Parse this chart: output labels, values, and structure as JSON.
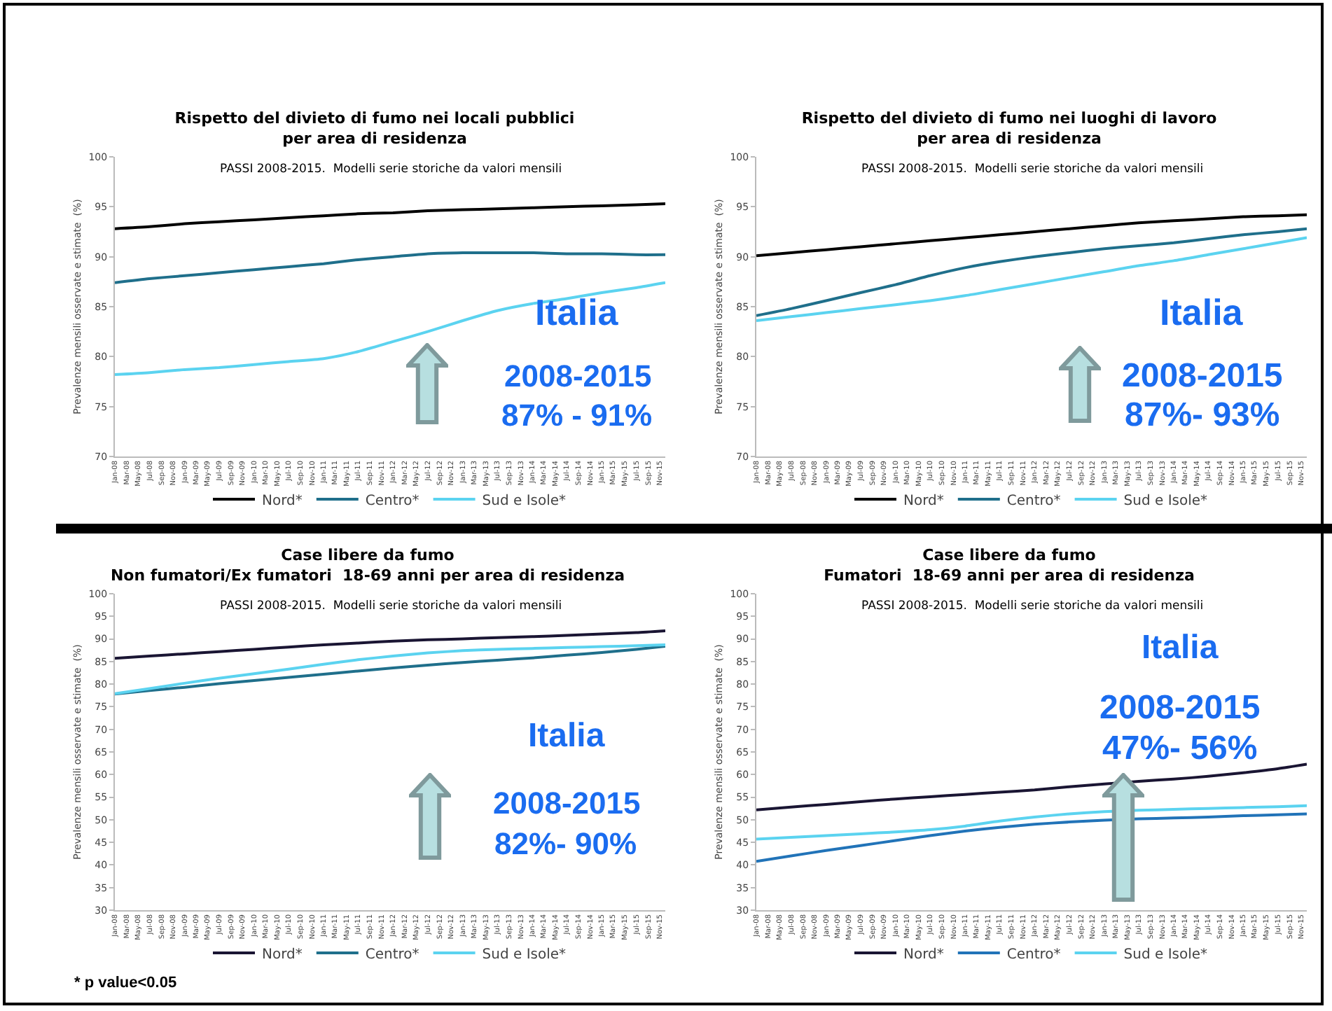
{
  "chart_data": [
    {
      "type": "line",
      "title": "Rispetto del divieto di fumo nei locali pubblici\nper area di residenza",
      "subtitle": "PASSI 2008-2015.  Modelli serie storiche da valori mensili",
      "ylabel": "Prevalenze mensili osservate e stimate  (%)",
      "legend": "bottom",
      "grid": false,
      "marker": "none",
      "line_style": "solid",
      "x": [
        "2008-01",
        "2008-07",
        "2009-01",
        "2009-07",
        "2010-01",
        "2010-07",
        "2011-01",
        "2011-07",
        "2012-01",
        "2012-07",
        "2013-01",
        "2013-07",
        "2014-01",
        "2014-07",
        "2015-01",
        "2015-07",
        "2015-12"
      ],
      "xlim": [
        "2008-01",
        "2015-12"
      ],
      "ylim": [
        70,
        100
      ],
      "yticks": [
        70,
        75,
        80,
        85,
        90,
        95,
        100
      ],
      "xticks": [
        {
          "value": "2008-01",
          "label": "Jan-08"
        },
        {
          "value": "2008-03",
          "label": "Mar-08"
        },
        {
          "value": "2008-05",
          "label": "May-08"
        },
        {
          "value": "2008-07",
          "label": "Jul-08"
        },
        {
          "value": "2008-09",
          "label": "Sep-08"
        },
        {
          "value": "2008-11",
          "label": "Nov-08"
        },
        {
          "value": "2009-01",
          "label": "Jan-09"
        },
        {
          "value": "2009-03",
          "label": "Mar-09"
        },
        {
          "value": "2009-05",
          "label": "May-09"
        },
        {
          "value": "2009-07",
          "label": "Jul-09"
        },
        {
          "value": "2009-09",
          "label": "Sep-09"
        },
        {
          "value": "2009-11",
          "label": "Nov-09"
        },
        {
          "value": "2010-01",
          "label": "Jan-10"
        },
        {
          "value": "2010-03",
          "label": "Mar-10"
        },
        {
          "value": "2010-05",
          "label": "May-10"
        },
        {
          "value": "2010-07",
          "label": "Jul-10"
        },
        {
          "value": "2010-09",
          "label": "Sep-10"
        },
        {
          "value": "2010-11",
          "label": "Nov-10"
        },
        {
          "value": "2011-01",
          "label": "Jan-11"
        },
        {
          "value": "2011-03",
          "label": "Mar-11"
        },
        {
          "value": "2011-05",
          "label": "May-11"
        },
        {
          "value": "2011-07",
          "label": "Jul-11"
        },
        {
          "value": "2011-09",
          "label": "Sep-11"
        },
        {
          "value": "2011-11",
          "label": "Nov-11"
        },
        {
          "value": "2012-01",
          "label": "Jan-12"
        },
        {
          "value": "2012-03",
          "label": "Mar-12"
        },
        {
          "value": "2012-05",
          "label": "May-12"
        },
        {
          "value": "2012-07",
          "label": "Jul-12"
        },
        {
          "value": "2012-09",
          "label": "Sep-12"
        },
        {
          "value": "2012-11",
          "label": "Nov-12"
        },
        {
          "value": "2013-01",
          "label": "Jan-13"
        },
        {
          "value": "2013-03",
          "label": "Mar-13"
        },
        {
          "value": "2013-05",
          "label": "May-13"
        },
        {
          "value": "2013-07",
          "label": "Jul-13"
        },
        {
          "value": "2013-09",
          "label": "Sep-13"
        },
        {
          "value": "2013-11",
          "label": "Nov-13"
        },
        {
          "value": "2014-01",
          "label": "Jan-14"
        },
        {
          "value": "2014-03",
          "label": "Mar-14"
        },
        {
          "value": "2014-05",
          "label": "May-14"
        },
        {
          "value": "2014-07",
          "label": "Jul-14"
        },
        {
          "value": "2014-09",
          "label": "Sep-14"
        },
        {
          "value": "2014-11",
          "label": "Nov-14"
        },
        {
          "value": "2015-01",
          "label": "Jan-15"
        },
        {
          "value": "2015-03",
          "label": "Mar-15"
        },
        {
          "value": "2015-05",
          "label": "May-15"
        },
        {
          "value": "2015-07",
          "label": "Jul-15"
        },
        {
          "value": "2015-09",
          "label": "Sep-15"
        },
        {
          "value": "2015-11",
          "label": "Nov-15"
        }
      ],
      "series": [
        {
          "name": "Nord*",
          "color": "#000000",
          "values": [
            92.8,
            93.0,
            93.3,
            93.5,
            93.7,
            93.9,
            94.1,
            94.3,
            94.4,
            94.6,
            94.7,
            94.8,
            94.9,
            95.0,
            95.1,
            95.2,
            95.3
          ]
        },
        {
          "name": "Centro*",
          "color": "#1f6f8b",
          "values": [
            87.4,
            87.8,
            88.1,
            88.4,
            88.7,
            89.0,
            89.3,
            89.7,
            90.0,
            90.3,
            90.4,
            90.4,
            90.4,
            90.3,
            90.3,
            90.2,
            90.2
          ]
        },
        {
          "name": "Sud e Isole*",
          "color": "#5bd3f0",
          "values": [
            78.2,
            78.4,
            78.7,
            78.9,
            79.2,
            79.5,
            79.8,
            80.5,
            81.5,
            82.5,
            83.6,
            84.6,
            85.3,
            85.8,
            86.4,
            86.9,
            87.4
          ]
        }
      ],
      "annotations": [
        "Italia",
        "2008-2015",
        "87% - 91%"
      ]
    },
    {
      "type": "line",
      "title": "Rispetto del divieto di fumo nei luoghi di lavoro\nper area di residenza",
      "subtitle": "PASSI 2008-2015.  Modelli serie storiche da valori mensili",
      "ylabel": "Prevalenze mensili osservate e stimate  (%)",
      "legend": "bottom",
      "grid": false,
      "marker": "none",
      "line_style": "solid",
      "x": [
        "2008-01",
        "2008-07",
        "2009-01",
        "2009-07",
        "2010-01",
        "2010-07",
        "2011-01",
        "2011-07",
        "2012-01",
        "2012-07",
        "2013-01",
        "2013-07",
        "2014-01",
        "2014-07",
        "2015-01",
        "2015-07",
        "2015-12"
      ],
      "xlim": [
        "2008-01",
        "2015-12"
      ],
      "ylim": [
        70,
        100
      ],
      "yticks": [
        70,
        75,
        80,
        85,
        90,
        95,
        100
      ],
      "xticks": [
        {
          "value": "2008-01",
          "label": "Jan-08"
        },
        {
          "value": "2008-03",
          "label": "Mar-08"
        },
        {
          "value": "2008-05",
          "label": "May-08"
        },
        {
          "value": "2008-07",
          "label": "Jul-08"
        },
        {
          "value": "2008-09",
          "label": "Sep-08"
        },
        {
          "value": "2008-11",
          "label": "Nov-08"
        },
        {
          "value": "2009-01",
          "label": "Jan-09"
        },
        {
          "value": "2009-03",
          "label": "Mar-09"
        },
        {
          "value": "2009-05",
          "label": "May-09"
        },
        {
          "value": "2009-07",
          "label": "Jul-09"
        },
        {
          "value": "2009-09",
          "label": "Sep-09"
        },
        {
          "value": "2009-11",
          "label": "Nov-09"
        },
        {
          "value": "2010-01",
          "label": "Jan-10"
        },
        {
          "value": "2010-03",
          "label": "Mar-10"
        },
        {
          "value": "2010-05",
          "label": "May-10"
        },
        {
          "value": "2010-07",
          "label": "Jul-10"
        },
        {
          "value": "2010-09",
          "label": "Sep-10"
        },
        {
          "value": "2010-11",
          "label": "Nov-10"
        },
        {
          "value": "2011-01",
          "label": "Jan-11"
        },
        {
          "value": "2011-03",
          "label": "Mar-11"
        },
        {
          "value": "2011-05",
          "label": "May-11"
        },
        {
          "value": "2011-07",
          "label": "Jul-11"
        },
        {
          "value": "2011-09",
          "label": "Sep-11"
        },
        {
          "value": "2011-11",
          "label": "Nov-11"
        },
        {
          "value": "2012-01",
          "label": "Jan-12"
        },
        {
          "value": "2012-03",
          "label": "Mar-12"
        },
        {
          "value": "2012-05",
          "label": "May-12"
        },
        {
          "value": "2012-07",
          "label": "Jul-12"
        },
        {
          "value": "2012-09",
          "label": "Sep-12"
        },
        {
          "value": "2012-11",
          "label": "Nov-12"
        },
        {
          "value": "2013-01",
          "label": "Jan-13"
        },
        {
          "value": "2013-03",
          "label": "Mar-13"
        },
        {
          "value": "2013-05",
          "label": "May-13"
        },
        {
          "value": "2013-07",
          "label": "Jul-13"
        },
        {
          "value": "2013-09",
          "label": "Sep-13"
        },
        {
          "value": "2013-11",
          "label": "Nov-13"
        },
        {
          "value": "2014-01",
          "label": "Jan-14"
        },
        {
          "value": "2014-03",
          "label": "Mar-14"
        },
        {
          "value": "2014-05",
          "label": "May-14"
        },
        {
          "value": "2014-07",
          "label": "Jul-14"
        },
        {
          "value": "2014-09",
          "label": "Sep-14"
        },
        {
          "value": "2014-11",
          "label": "Nov-14"
        },
        {
          "value": "2015-01",
          "label": "Jan-15"
        },
        {
          "value": "2015-03",
          "label": "Mar-15"
        },
        {
          "value": "2015-05",
          "label": "May-15"
        },
        {
          "value": "2015-07",
          "label": "Jul-15"
        },
        {
          "value": "2015-09",
          "label": "Sep-15"
        },
        {
          "value": "2015-11",
          "label": "Nov-15"
        }
      ],
      "series": [
        {
          "name": "Nord*",
          "color": "#000000",
          "values": [
            90.1,
            90.4,
            90.7,
            91.0,
            91.3,
            91.6,
            91.9,
            92.2,
            92.5,
            92.8,
            93.1,
            93.4,
            93.6,
            93.8,
            94.0,
            94.1,
            94.2
          ]
        },
        {
          "name": "Centro*",
          "color": "#1f6f8b",
          "values": [
            84.1,
            84.8,
            85.6,
            86.4,
            87.2,
            88.1,
            88.9,
            89.5,
            90.0,
            90.4,
            90.8,
            91.1,
            91.4,
            91.8,
            92.2,
            92.5,
            92.8
          ]
        },
        {
          "name": "Sud e Isole*",
          "color": "#5bd3f0",
          "values": [
            83.6,
            84.0,
            84.4,
            84.8,
            85.2,
            85.6,
            86.1,
            86.7,
            87.3,
            87.9,
            88.5,
            89.1,
            89.6,
            90.2,
            90.8,
            91.4,
            91.9
          ]
        }
      ],
      "annotations": [
        "Italia",
        "2008-2015",
        "87%- 93%"
      ]
    },
    {
      "type": "line",
      "title": "Case libere da fumo\nNon fumatori/Ex fumatori  18-69 anni per area di residenza",
      "subtitle": "PASSI 2008-2015.  Modelli serie storiche da valori mensili",
      "ylabel": "Prevalenze mensili osservate e stimate  (%)",
      "legend": "bottom",
      "grid": false,
      "marker": "none",
      "line_style": "solid",
      "x": [
        "2008-01",
        "2008-07",
        "2009-01",
        "2009-07",
        "2010-01",
        "2010-07",
        "2011-01",
        "2011-07",
        "2012-01",
        "2012-07",
        "2013-01",
        "2013-07",
        "2014-01",
        "2014-07",
        "2015-01",
        "2015-07",
        "2015-12"
      ],
      "xlim": [
        "2008-01",
        "2015-12"
      ],
      "ylim": [
        30,
        100
      ],
      "yticks": [
        30,
        35,
        40,
        45,
        50,
        55,
        60,
        65,
        70,
        75,
        80,
        85,
        90,
        95,
        100
      ],
      "xticks": [
        {
          "value": "2008-01",
          "label": "Jan-08"
        },
        {
          "value": "2008-03",
          "label": "Mar-08"
        },
        {
          "value": "2008-05",
          "label": "May-08"
        },
        {
          "value": "2008-07",
          "label": "Jul-08"
        },
        {
          "value": "2008-09",
          "label": "Sep-08"
        },
        {
          "value": "2008-11",
          "label": "Nov-08"
        },
        {
          "value": "2009-01",
          "label": "Jan-09"
        },
        {
          "value": "2009-03",
          "label": "Mar-09"
        },
        {
          "value": "2009-05",
          "label": "May-09"
        },
        {
          "value": "2009-07",
          "label": "Jul-09"
        },
        {
          "value": "2009-09",
          "label": "Sep-09"
        },
        {
          "value": "2009-11",
          "label": "Nov-09"
        },
        {
          "value": "2010-01",
          "label": "Jan-10"
        },
        {
          "value": "2010-03",
          "label": "Mar-10"
        },
        {
          "value": "2010-05",
          "label": "May-10"
        },
        {
          "value": "2010-07",
          "label": "Jul-10"
        },
        {
          "value": "2010-09",
          "label": "Sep-10"
        },
        {
          "value": "2010-11",
          "label": "Nov-10"
        },
        {
          "value": "2011-01",
          "label": "Jan-11"
        },
        {
          "value": "2011-03",
          "label": "Mar-11"
        },
        {
          "value": "2011-05",
          "label": "May-11"
        },
        {
          "value": "2011-07",
          "label": "Jul-11"
        },
        {
          "value": "2011-09",
          "label": "Sep-11"
        },
        {
          "value": "2011-11",
          "label": "Nov-11"
        },
        {
          "value": "2012-01",
          "label": "Jan-12"
        },
        {
          "value": "2012-03",
          "label": "Mar-12"
        },
        {
          "value": "2012-05",
          "label": "May-12"
        },
        {
          "value": "2012-07",
          "label": "Jul-12"
        },
        {
          "value": "2012-09",
          "label": "Sep-12"
        },
        {
          "value": "2012-11",
          "label": "Nov-12"
        },
        {
          "value": "2013-01",
          "label": "Jan-13"
        },
        {
          "value": "2013-03",
          "label": "Mar-13"
        },
        {
          "value": "2013-05",
          "label": "May-13"
        },
        {
          "value": "2013-07",
          "label": "Jul-13"
        },
        {
          "value": "2013-09",
          "label": "Sep-13"
        },
        {
          "value": "2013-11",
          "label": "Nov-13"
        },
        {
          "value": "2014-01",
          "label": "Jan-14"
        },
        {
          "value": "2014-03",
          "label": "Mar-14"
        },
        {
          "value": "2014-05",
          "label": "May-14"
        },
        {
          "value": "2014-07",
          "label": "Jul-14"
        },
        {
          "value": "2014-09",
          "label": "Sep-14"
        },
        {
          "value": "2014-11",
          "label": "Nov-14"
        },
        {
          "value": "2015-01",
          "label": "Jan-15"
        },
        {
          "value": "2015-03",
          "label": "Mar-15"
        },
        {
          "value": "2015-05",
          "label": "May-15"
        },
        {
          "value": "2015-07",
          "label": "Jul-15"
        },
        {
          "value": "2015-09",
          "label": "Sep-15"
        },
        {
          "value": "2015-11",
          "label": "Nov-15"
        }
      ],
      "series": [
        {
          "name": "Nord*",
          "color": "#1a1533",
          "values": [
            85.7,
            86.2,
            86.7,
            87.2,
            87.7,
            88.2,
            88.7,
            89.1,
            89.5,
            89.8,
            90.0,
            90.3,
            90.5,
            90.8,
            91.1,
            91.4,
            91.8
          ]
        },
        {
          "name": "Centro*",
          "color": "#1f6f8b",
          "values": [
            77.8,
            78.6,
            79.3,
            80.1,
            80.8,
            81.5,
            82.2,
            82.9,
            83.6,
            84.2,
            84.8,
            85.3,
            85.8,
            86.4,
            87.0,
            87.7,
            88.4
          ]
        },
        {
          "name": "Sud e Isole*",
          "color": "#5bd3f0",
          "values": [
            77.9,
            79.0,
            80.2,
            81.3,
            82.3,
            83.3,
            84.4,
            85.4,
            86.2,
            86.9,
            87.4,
            87.7,
            87.9,
            88.1,
            88.3,
            88.5,
            88.7
          ]
        }
      ],
      "annotations": [
        "Italia",
        "2008-2015",
        "82%- 90%",
        "* p value<0.05"
      ]
    },
    {
      "type": "line",
      "title": "Case libere da fumo\nFumatori  18-69 anni per area di residenza",
      "subtitle": "PASSI 2008-2015.  Modelli serie storiche da valori mensili",
      "ylabel": "Prevalenze mensili osservate e stimate  (%)",
      "legend": "bottom",
      "grid": false,
      "marker": "none",
      "line_style": "solid",
      "x": [
        "2008-01",
        "2008-07",
        "2009-01",
        "2009-07",
        "2010-01",
        "2010-07",
        "2011-01",
        "2011-07",
        "2012-01",
        "2012-07",
        "2013-01",
        "2013-07",
        "2014-01",
        "2014-07",
        "2015-01",
        "2015-07",
        "2015-12"
      ],
      "xlim": [
        "2008-01",
        "2015-12"
      ],
      "ylim": [
        30,
        100
      ],
      "yticks": [
        30,
        35,
        40,
        45,
        50,
        55,
        60,
        65,
        70,
        75,
        80,
        85,
        90,
        95,
        100
      ],
      "xticks": [
        {
          "value": "2008-01",
          "label": "Jan-08"
        },
        {
          "value": "2008-03",
          "label": "Mar-08"
        },
        {
          "value": "2008-05",
          "label": "May-08"
        },
        {
          "value": "2008-07",
          "label": "Jul-08"
        },
        {
          "value": "2008-09",
          "label": "Sep-08"
        },
        {
          "value": "2008-11",
          "label": "Nov-08"
        },
        {
          "value": "2009-01",
          "label": "Jan-09"
        },
        {
          "value": "2009-03",
          "label": "Mar-09"
        },
        {
          "value": "2009-05",
          "label": "May-09"
        },
        {
          "value": "2009-07",
          "label": "Jul-09"
        },
        {
          "value": "2009-09",
          "label": "Sep-09"
        },
        {
          "value": "2009-11",
          "label": "Nov-09"
        },
        {
          "value": "2010-01",
          "label": "Jan-10"
        },
        {
          "value": "2010-03",
          "label": "Mar-10"
        },
        {
          "value": "2010-05",
          "label": "May-10"
        },
        {
          "value": "2010-07",
          "label": "Jul-10"
        },
        {
          "value": "2010-09",
          "label": "Sep-10"
        },
        {
          "value": "2010-11",
          "label": "Nov-10"
        },
        {
          "value": "2011-01",
          "label": "Jan-11"
        },
        {
          "value": "2011-03",
          "label": "Mar-11"
        },
        {
          "value": "2011-05",
          "label": "May-11"
        },
        {
          "value": "2011-07",
          "label": "Jul-11"
        },
        {
          "value": "2011-09",
          "label": "Sep-11"
        },
        {
          "value": "2011-11",
          "label": "Nov-11"
        },
        {
          "value": "2012-01",
          "label": "Jan-12"
        },
        {
          "value": "2012-03",
          "label": "Mar-12"
        },
        {
          "value": "2012-05",
          "label": "May-12"
        },
        {
          "value": "2012-07",
          "label": "Jul-12"
        },
        {
          "value": "2012-09",
          "label": "Sep-12"
        },
        {
          "value": "2012-11",
          "label": "Nov-12"
        },
        {
          "value": "2013-01",
          "label": "Jan-13"
        },
        {
          "value": "2013-03",
          "label": "Mar-13"
        },
        {
          "value": "2013-05",
          "label": "May-13"
        },
        {
          "value": "2013-07",
          "label": "Jul-13"
        },
        {
          "value": "2013-09",
          "label": "Sep-13"
        },
        {
          "value": "2013-11",
          "label": "Nov-13"
        },
        {
          "value": "2014-01",
          "label": "Jan-14"
        },
        {
          "value": "2014-03",
          "label": "Mar-14"
        },
        {
          "value": "2014-05",
          "label": "May-14"
        },
        {
          "value": "2014-07",
          "label": "Jul-14"
        },
        {
          "value": "2014-09",
          "label": "Sep-14"
        },
        {
          "value": "2014-11",
          "label": "Nov-14"
        },
        {
          "value": "2015-01",
          "label": "Jan-15"
        },
        {
          "value": "2015-03",
          "label": "Mar-15"
        },
        {
          "value": "2015-05",
          "label": "May-15"
        },
        {
          "value": "2015-07",
          "label": "Jul-15"
        },
        {
          "value": "2015-09",
          "label": "Sep-15"
        },
        {
          "value": "2015-11",
          "label": "Nov-15"
        }
      ],
      "series": [
        {
          "name": "Nord*",
          "color": "#1a1533",
          "values": [
            52.2,
            52.8,
            53.4,
            54.0,
            54.6,
            55.1,
            55.6,
            56.1,
            56.6,
            57.3,
            57.9,
            58.5,
            59.0,
            59.6,
            60.4,
            61.3,
            62.3
          ]
        },
        {
          "name": "Centro*",
          "color": "#2173b8",
          "values": [
            40.8,
            42.0,
            43.2,
            44.3,
            45.4,
            46.5,
            47.5,
            48.3,
            49.0,
            49.5,
            49.9,
            50.2,
            50.4,
            50.6,
            50.9,
            51.1,
            51.3
          ]
        },
        {
          "name": "Sud e Isole*",
          "color": "#5bd3f0",
          "values": [
            45.7,
            46.1,
            46.5,
            46.9,
            47.3,
            47.8,
            48.6,
            49.7,
            50.6,
            51.3,
            51.8,
            52.1,
            52.3,
            52.5,
            52.7,
            52.9,
            53.1
          ]
        }
      ],
      "annotations": [
        "Italia",
        "2008-2015",
        "47%- 56%"
      ]
    }
  ]
}
